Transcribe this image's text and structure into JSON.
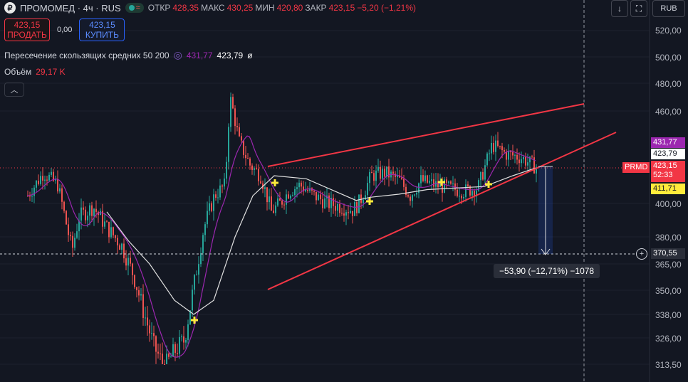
{
  "header": {
    "logo": "₽",
    "symbol_line": "ПРОМОМЕД · 4ч · RUS",
    "ohlc": [
      {
        "key": "ОТКР",
        "value": "428,35"
      },
      {
        "key": "МАКС",
        "value": "430,25"
      },
      {
        "key": "МИН",
        "value": "420,80"
      },
      {
        "key": "ЗАКР",
        "value": "423,15"
      }
    ],
    "change": "−5,20 (−1,21%)"
  },
  "trade": {
    "sell_price": "423,15",
    "sell_label": "ПРОДАТЬ",
    "spread": "0,00",
    "buy_price": "423,15",
    "buy_label": "КУПИТЬ"
  },
  "indicators": {
    "ma_name": "Пересечение скользящих средних 50 200",
    "ma_val1": "431,77",
    "ma_val2": "423,79",
    "ma_sym": "ø",
    "vol_name": "Объём",
    "vol_val": "29,17 K"
  },
  "toolbar": {
    "currency": "RUB",
    "down_icon": "down-arrow-icon",
    "screenshot_icon": "frame-icon"
  },
  "price_axis": [
    "520,00",
    "500,00",
    "480,00",
    "460,00",
    "431,77",
    "423,79",
    "400,00",
    "380,00",
    "370,55",
    "365,00",
    "350,00",
    "338,00",
    "326,00",
    "313,50"
  ],
  "price_labels": {
    "ma50": "431,77",
    "ma200": "423,79",
    "symbol_tag": "PRMD",
    "last": "423,15",
    "countdown": "52:33",
    "low_level": "411,71",
    "measure_target": "370,55"
  },
  "measure": {
    "text": "−53,90 (−12,71%) −1078"
  },
  "colors": {
    "up": "#26a69a",
    "down": "#ef5350",
    "ma50": "#9c27b0",
    "ma200": "#e0e0e0",
    "trendline": "#f23645",
    "marker": "#ffeb3b",
    "bg": "#131722"
  }
}
